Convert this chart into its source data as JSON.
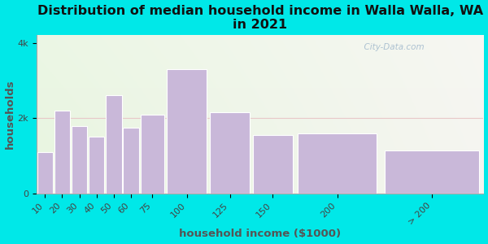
{
  "title": "Distribution of median household income in Walla Walla, WA\nin 2021",
  "xlabel": "household income ($1000)",
  "ylabel": "households",
  "categories": [
    "10",
    "20",
    "30",
    "40",
    "50",
    "60",
    "75",
    "100",
    "125",
    "150",
    "200",
    "> 200"
  ],
  "values": [
    1100,
    2200,
    1800,
    1500,
    2600,
    1750,
    2100,
    3300,
    2150,
    1550,
    1600,
    1150
  ],
  "bar_color": "#c9b8d9",
  "background_color": "#00e8e8",
  "plot_bg_left_color": "#e8f5e0",
  "plot_bg_right_color": "#f5f5f0",
  "ylim": [
    0,
    4200
  ],
  "yticks": [
    0,
    2000,
    4000
  ],
  "ytick_labels": [
    "0",
    "2k",
    "4k"
  ],
  "title_fontsize": 11.5,
  "axis_label_fontsize": 9.5,
  "tick_fontsize": 8,
  "watermark_text": "  City-Data.com",
  "watermark_color": "#a0b8cc",
  "hline_color": "#e8c8c8",
  "hline_y": 2000
}
